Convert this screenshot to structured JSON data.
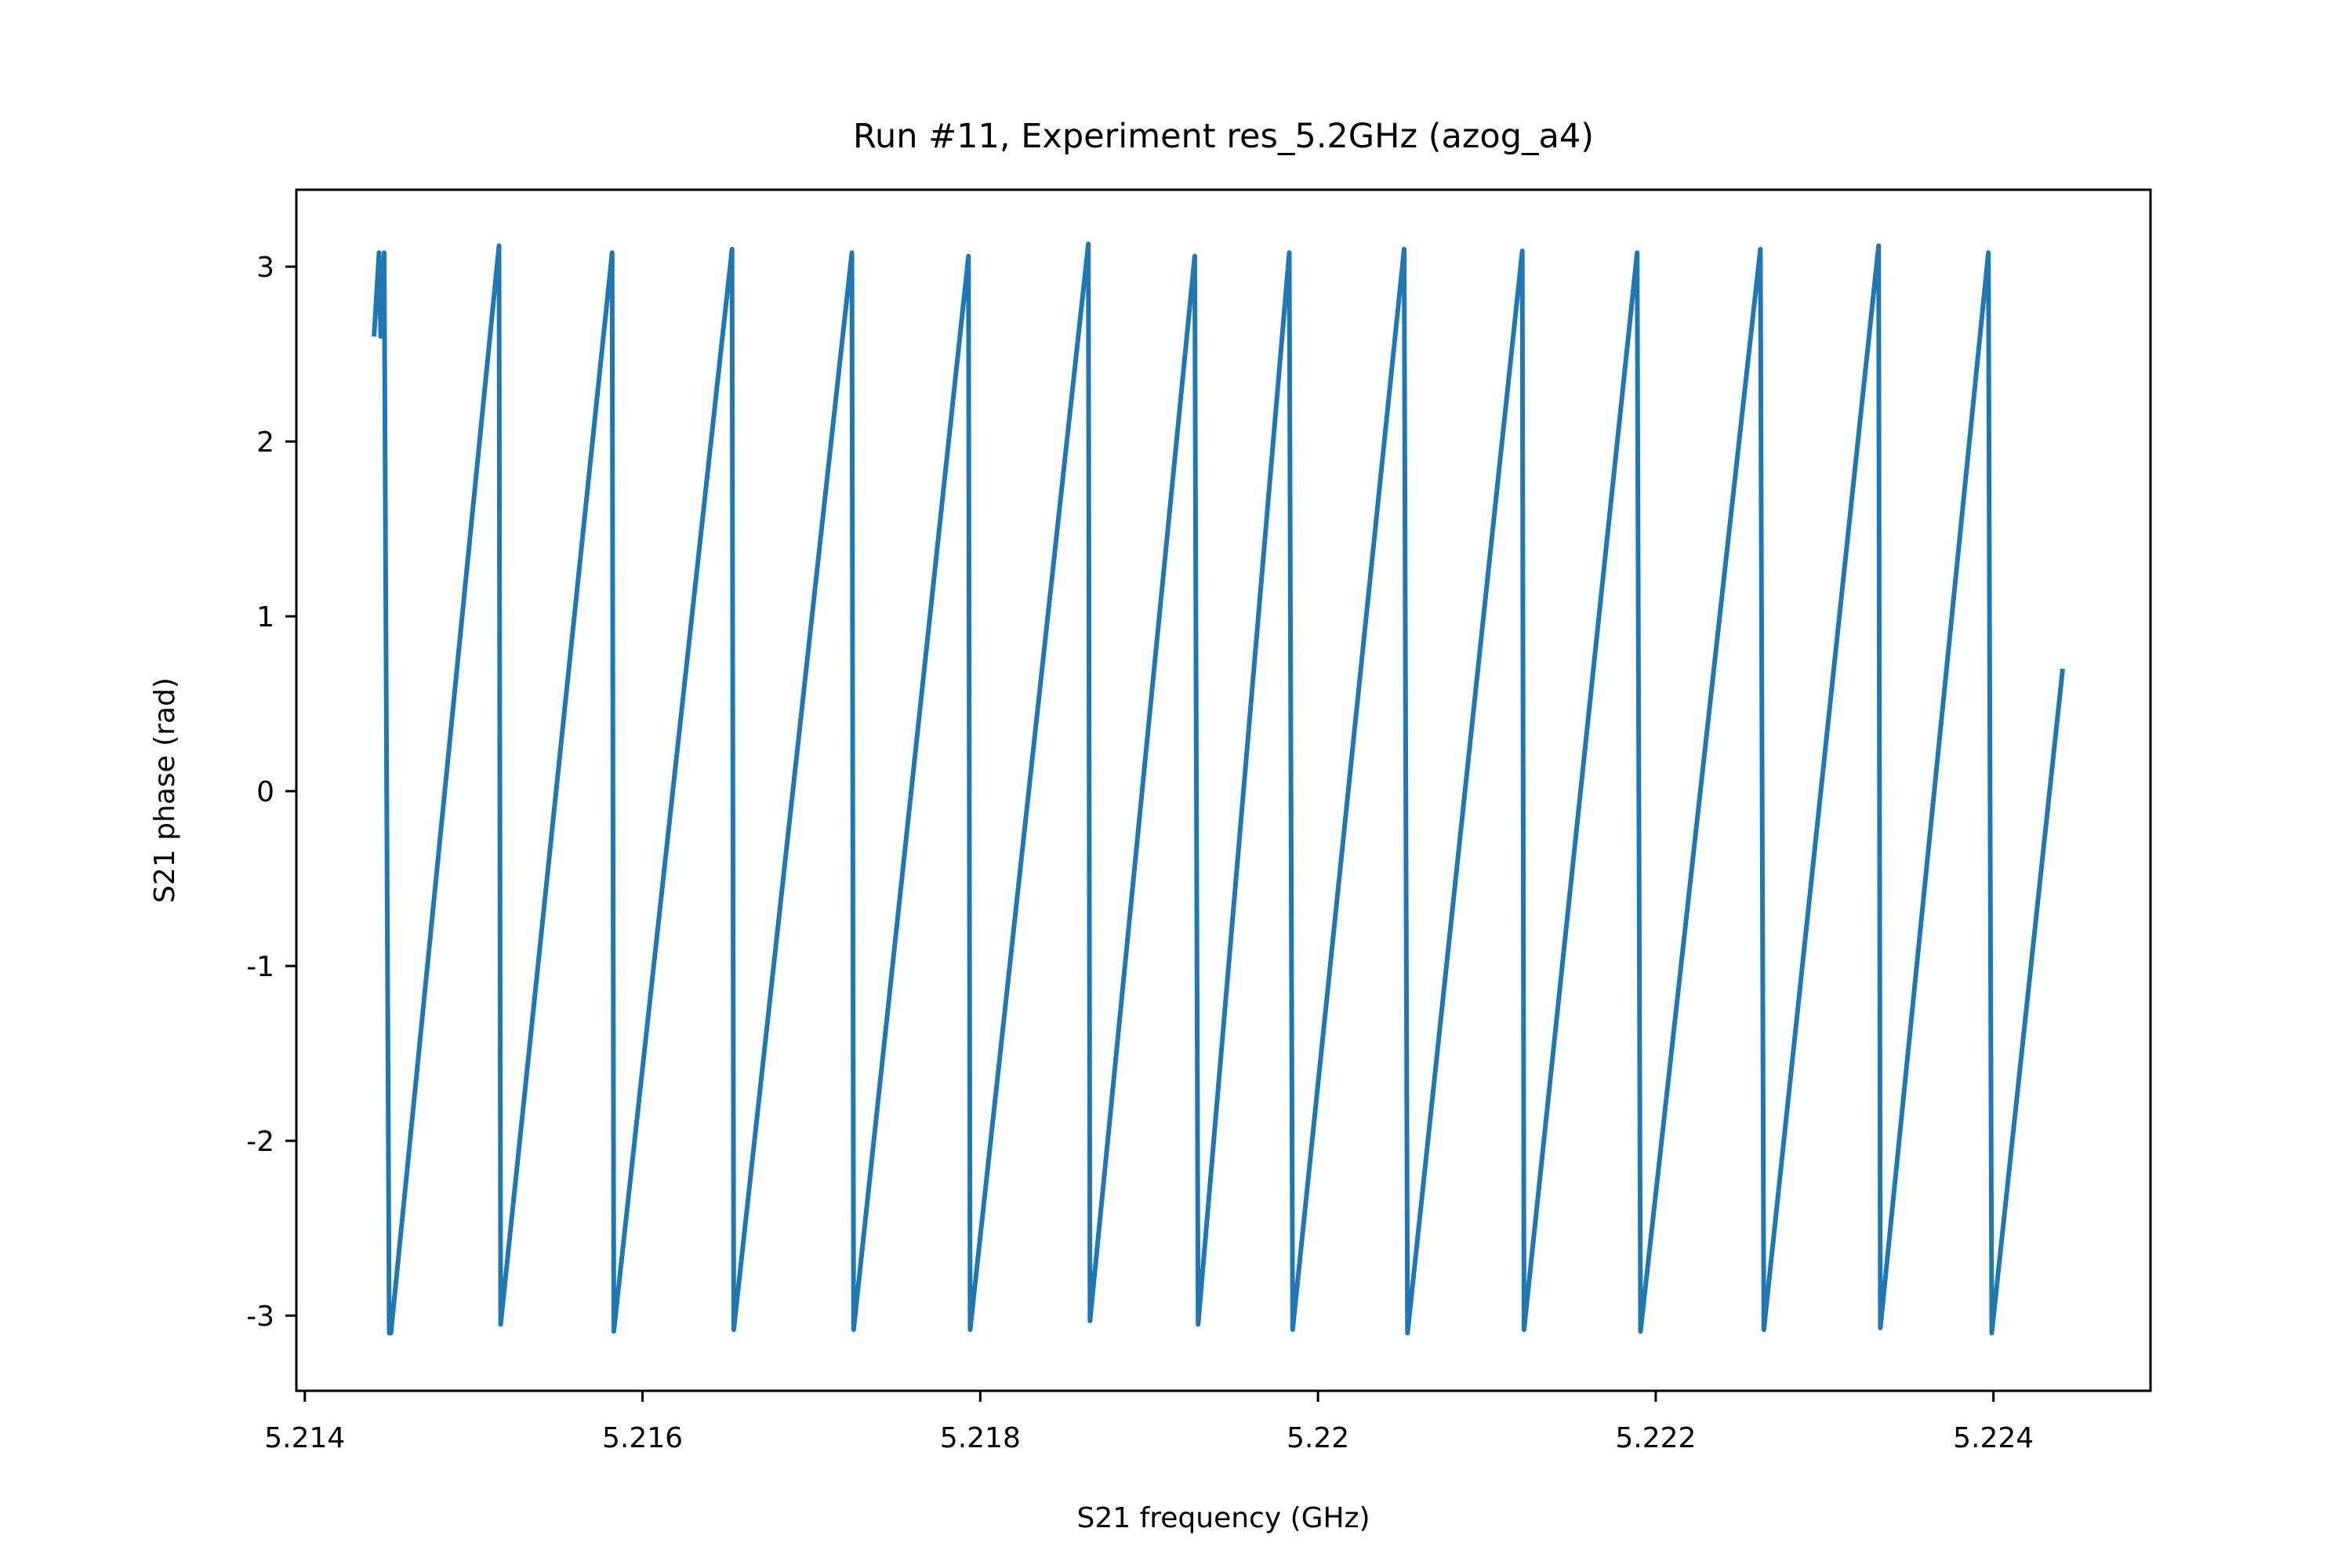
{
  "chart_data": {
    "type": "line",
    "title": "Run #11, Experiment res_5.2GHz (azog_a4)",
    "xlabel": "S21 frequency (GHz)",
    "ylabel": "S21 phase (rad)",
    "xlim": [
      5.21395,
      5.22493
    ],
    "ylim": [
      -3.43,
      3.44
    ],
    "x_ticks": [
      5.214,
      5.216,
      5.218,
      5.22,
      5.222,
      5.224
    ],
    "x_tick_labels": [
      "5.214",
      "5.216",
      "5.218",
      "5.22",
      "5.222",
      "5.224"
    ],
    "y_ticks": [
      -3,
      -2,
      -1,
      0,
      1,
      2,
      3
    ],
    "y_tick_labels": [
      "-3",
      "-2",
      "-1",
      "0",
      "1",
      "2",
      "3"
    ],
    "grid": false,
    "series": [
      {
        "color": "#1f77b4",
        "x": [
          5.21441,
          5.21444,
          5.21445,
          5.21447,
          5.2145,
          5.21451,
          5.21515,
          5.21516,
          5.21582,
          5.21583,
          5.21653,
          5.21654,
          5.21724,
          5.21725,
          5.21793,
          5.21794,
          5.21864,
          5.21865,
          5.21927,
          5.21929,
          5.21983,
          5.21985,
          5.22051,
          5.22053,
          5.22121,
          5.22122,
          5.22189,
          5.22191,
          5.22262,
          5.22264,
          5.22332,
          5.22333,
          5.22397,
          5.22399,
          5.22441
        ],
        "y": [
          2.6,
          3.08,
          2.6,
          3.08,
          -3.1,
          -3.1,
          3.12,
          -3.05,
          3.08,
          -3.09,
          3.1,
          -3.08,
          3.08,
          -3.08,
          3.06,
          -3.08,
          3.13,
          -3.03,
          3.06,
          -3.05,
          3.08,
          -3.08,
          3.1,
          -3.1,
          3.09,
          -3.08,
          3.08,
          -3.09,
          3.1,
          -3.08,
          3.12,
          -3.07,
          3.08,
          -3.1,
          0.7
        ]
      }
    ]
  }
}
